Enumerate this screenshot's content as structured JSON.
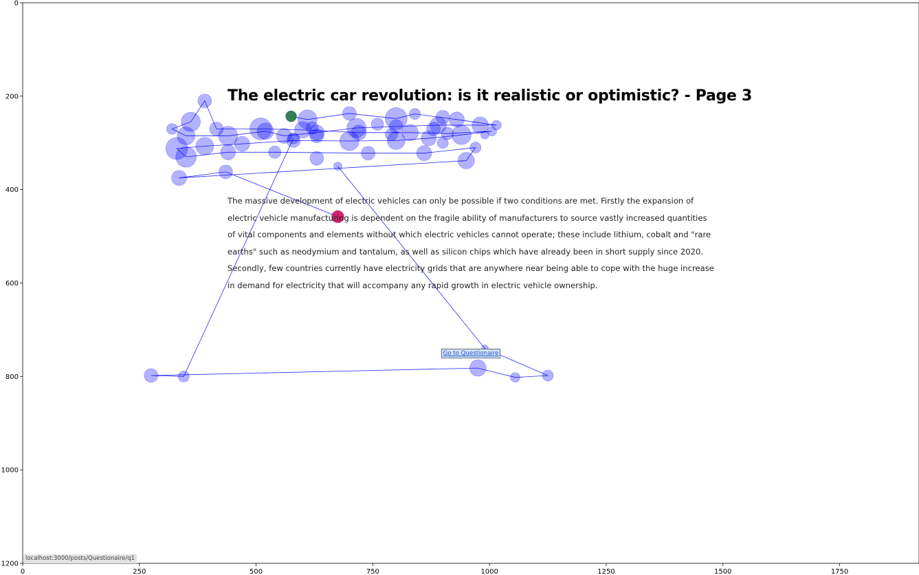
{
  "page": {
    "title": "The electric car revolution: is it realistic or optimistic? - Page 3",
    "body_text": "The massive development of electric vehicles can only be possible if two conditions are met. Firstly the expansion of electric vehicle manufacturing is dependent on the fragile ability of manufacturers to source vastly increased quantities of vital components and elements without which electric vehicles cannot operate; these include lithium, cobalt and \"rare earths\" such as neodymium and tantalum, as well as silicon chips which have already been in short supply since 2020. Secondly, few countries currently have electricity grids that are anywhere near being able to cope with the huge increase in demand for electricity that will accompany any rapid growth in electric vehicle ownership.",
    "button_label": "Go to Questionaire",
    "status_url": "localhost:3000/posts/Questionaire/q1"
  },
  "chart_data": {
    "type": "scatter",
    "title": "",
    "xlabel": "",
    "ylabel": "",
    "xlim": [
      0,
      1920
    ],
    "ylim": [
      1200,
      0
    ],
    "x_ticks": [
      0,
      250,
      500,
      750,
      1000,
      1250,
      1500,
      1750
    ],
    "y_ticks": [
      0,
      200,
      400,
      600,
      800,
      1000,
      1200
    ],
    "grid": false,
    "colors": {
      "fixation_fill": "#0000ff",
      "scanpath_line": "#0000ff",
      "first_fixation": "#1a7a3a",
      "last_fixation": "#e0004a",
      "axis": "#000000"
    },
    "first_fixation": {
      "x": 575,
      "y": 243,
      "r": 8
    },
    "last_fixation": {
      "x": 675,
      "y": 458,
      "r": 9
    },
    "fixations": [
      {
        "x": 575,
        "y": 243,
        "r": 8
      },
      {
        "x": 610,
        "y": 250,
        "r": 14
      },
      {
        "x": 700,
        "y": 237,
        "r": 10
      },
      {
        "x": 800,
        "y": 248,
        "r": 16
      },
      {
        "x": 840,
        "y": 238,
        "r": 8
      },
      {
        "x": 900,
        "y": 245,
        "r": 10
      },
      {
        "x": 930,
        "y": 250,
        "r": 11
      },
      {
        "x": 980,
        "y": 262,
        "r": 12
      },
      {
        "x": 1015,
        "y": 262,
        "r": 7
      },
      {
        "x": 890,
        "y": 262,
        "r": 12
      },
      {
        "x": 800,
        "y": 265,
        "r": 10
      },
      {
        "x": 715,
        "y": 268,
        "r": 14
      },
      {
        "x": 630,
        "y": 278,
        "r": 11
      },
      {
        "x": 560,
        "y": 285,
        "r": 11
      },
      {
        "x": 520,
        "y": 275,
        "r": 12
      },
      {
        "x": 440,
        "y": 285,
        "r": 14
      },
      {
        "x": 350,
        "y": 285,
        "r": 13
      },
      {
        "x": 320,
        "y": 270,
        "r": 8
      },
      {
        "x": 360,
        "y": 255,
        "r": 14
      },
      {
        "x": 390,
        "y": 210,
        "r": 10
      },
      {
        "x": 415,
        "y": 270,
        "r": 10
      },
      {
        "x": 510,
        "y": 270,
        "r": 16
      },
      {
        "x": 600,
        "y": 272,
        "r": 12
      },
      {
        "x": 720,
        "y": 278,
        "r": 11
      },
      {
        "x": 790,
        "y": 282,
        "r": 9
      },
      {
        "x": 830,
        "y": 278,
        "r": 12
      },
      {
        "x": 910,
        "y": 280,
        "r": 9
      },
      {
        "x": 1005,
        "y": 275,
        "r": 7
      },
      {
        "x": 990,
        "y": 283,
        "r": 6
      },
      {
        "x": 940,
        "y": 283,
        "r": 14
      },
      {
        "x": 870,
        "y": 290,
        "r": 11
      },
      {
        "x": 800,
        "y": 295,
        "r": 13
      },
      {
        "x": 700,
        "y": 296,
        "r": 14
      },
      {
        "x": 580,
        "y": 295,
        "r": 10
      },
      {
        "x": 470,
        "y": 302,
        "r": 11
      },
      {
        "x": 390,
        "y": 307,
        "r": 13
      },
      {
        "x": 330,
        "y": 312,
        "r": 16
      },
      {
        "x": 350,
        "y": 330,
        "r": 15
      },
      {
        "x": 440,
        "y": 320,
        "r": 11
      },
      {
        "x": 540,
        "y": 320,
        "r": 9
      },
      {
        "x": 740,
        "y": 322,
        "r": 10
      },
      {
        "x": 860,
        "y": 322,
        "r": 11
      },
      {
        "x": 970,
        "y": 310,
        "r": 8
      },
      {
        "x": 950,
        "y": 338,
        "r": 12
      },
      {
        "x": 630,
        "y": 333,
        "r": 10
      },
      {
        "x": 335,
        "y": 375,
        "r": 11
      },
      {
        "x": 435,
        "y": 362,
        "r": 10
      },
      {
        "x": 675,
        "y": 458,
        "r": 9
      },
      {
        "x": 675,
        "y": 350,
        "r": 6
      },
      {
        "x": 990,
        "y": 740,
        "r": 5
      },
      {
        "x": 1125,
        "y": 798,
        "r": 8
      },
      {
        "x": 1055,
        "y": 802,
        "r": 7
      },
      {
        "x": 975,
        "y": 782,
        "r": 12
      },
      {
        "x": 345,
        "y": 800,
        "r": 8
      },
      {
        "x": 275,
        "y": 798,
        "r": 10
      },
      {
        "x": 580,
        "y": 290,
        "r": 8
      },
      {
        "x": 620,
        "y": 268,
        "r": 9
      },
      {
        "x": 880,
        "y": 270,
        "r": 10
      },
      {
        "x": 760,
        "y": 260,
        "r": 9
      },
      {
        "x": 900,
        "y": 300,
        "r": 8
      },
      {
        "x": 630,
        "y": 285,
        "r": 10
      }
    ],
    "scanpath": [
      [
        575,
        243
      ],
      [
        610,
        250
      ],
      [
        700,
        237
      ],
      [
        800,
        248
      ],
      [
        840,
        238
      ],
      [
        930,
        250
      ],
      [
        1015,
        262
      ],
      [
        890,
        262
      ],
      [
        800,
        265
      ],
      [
        715,
        268
      ],
      [
        630,
        278
      ],
      [
        560,
        285
      ],
      [
        520,
        275
      ],
      [
        440,
        285
      ],
      [
        350,
        285
      ],
      [
        320,
        270
      ],
      [
        360,
        255
      ],
      [
        390,
        210
      ],
      [
        415,
        270
      ],
      [
        510,
        270
      ],
      [
        600,
        272
      ],
      [
        720,
        278
      ],
      [
        830,
        278
      ],
      [
        910,
        280
      ],
      [
        1005,
        275
      ],
      [
        940,
        283
      ],
      [
        870,
        290
      ],
      [
        800,
        295
      ],
      [
        700,
        296
      ],
      [
        580,
        295
      ],
      [
        470,
        302
      ],
      [
        390,
        307
      ],
      [
        330,
        312
      ],
      [
        350,
        330
      ],
      [
        440,
        320
      ],
      [
        540,
        320
      ],
      [
        740,
        322
      ],
      [
        860,
        322
      ],
      [
        970,
        310
      ],
      [
        950,
        338
      ],
      [
        335,
        375
      ],
      [
        435,
        362
      ],
      [
        675,
        458
      ]
    ],
    "scanpath_tail": [
      [
        675,
        350
      ],
      [
        990,
        740
      ],
      [
        1125,
        798
      ],
      [
        1055,
        802
      ],
      [
        975,
        782
      ],
      [
        275,
        798
      ],
      [
        345,
        800
      ],
      [
        580,
        290
      ]
    ]
  }
}
